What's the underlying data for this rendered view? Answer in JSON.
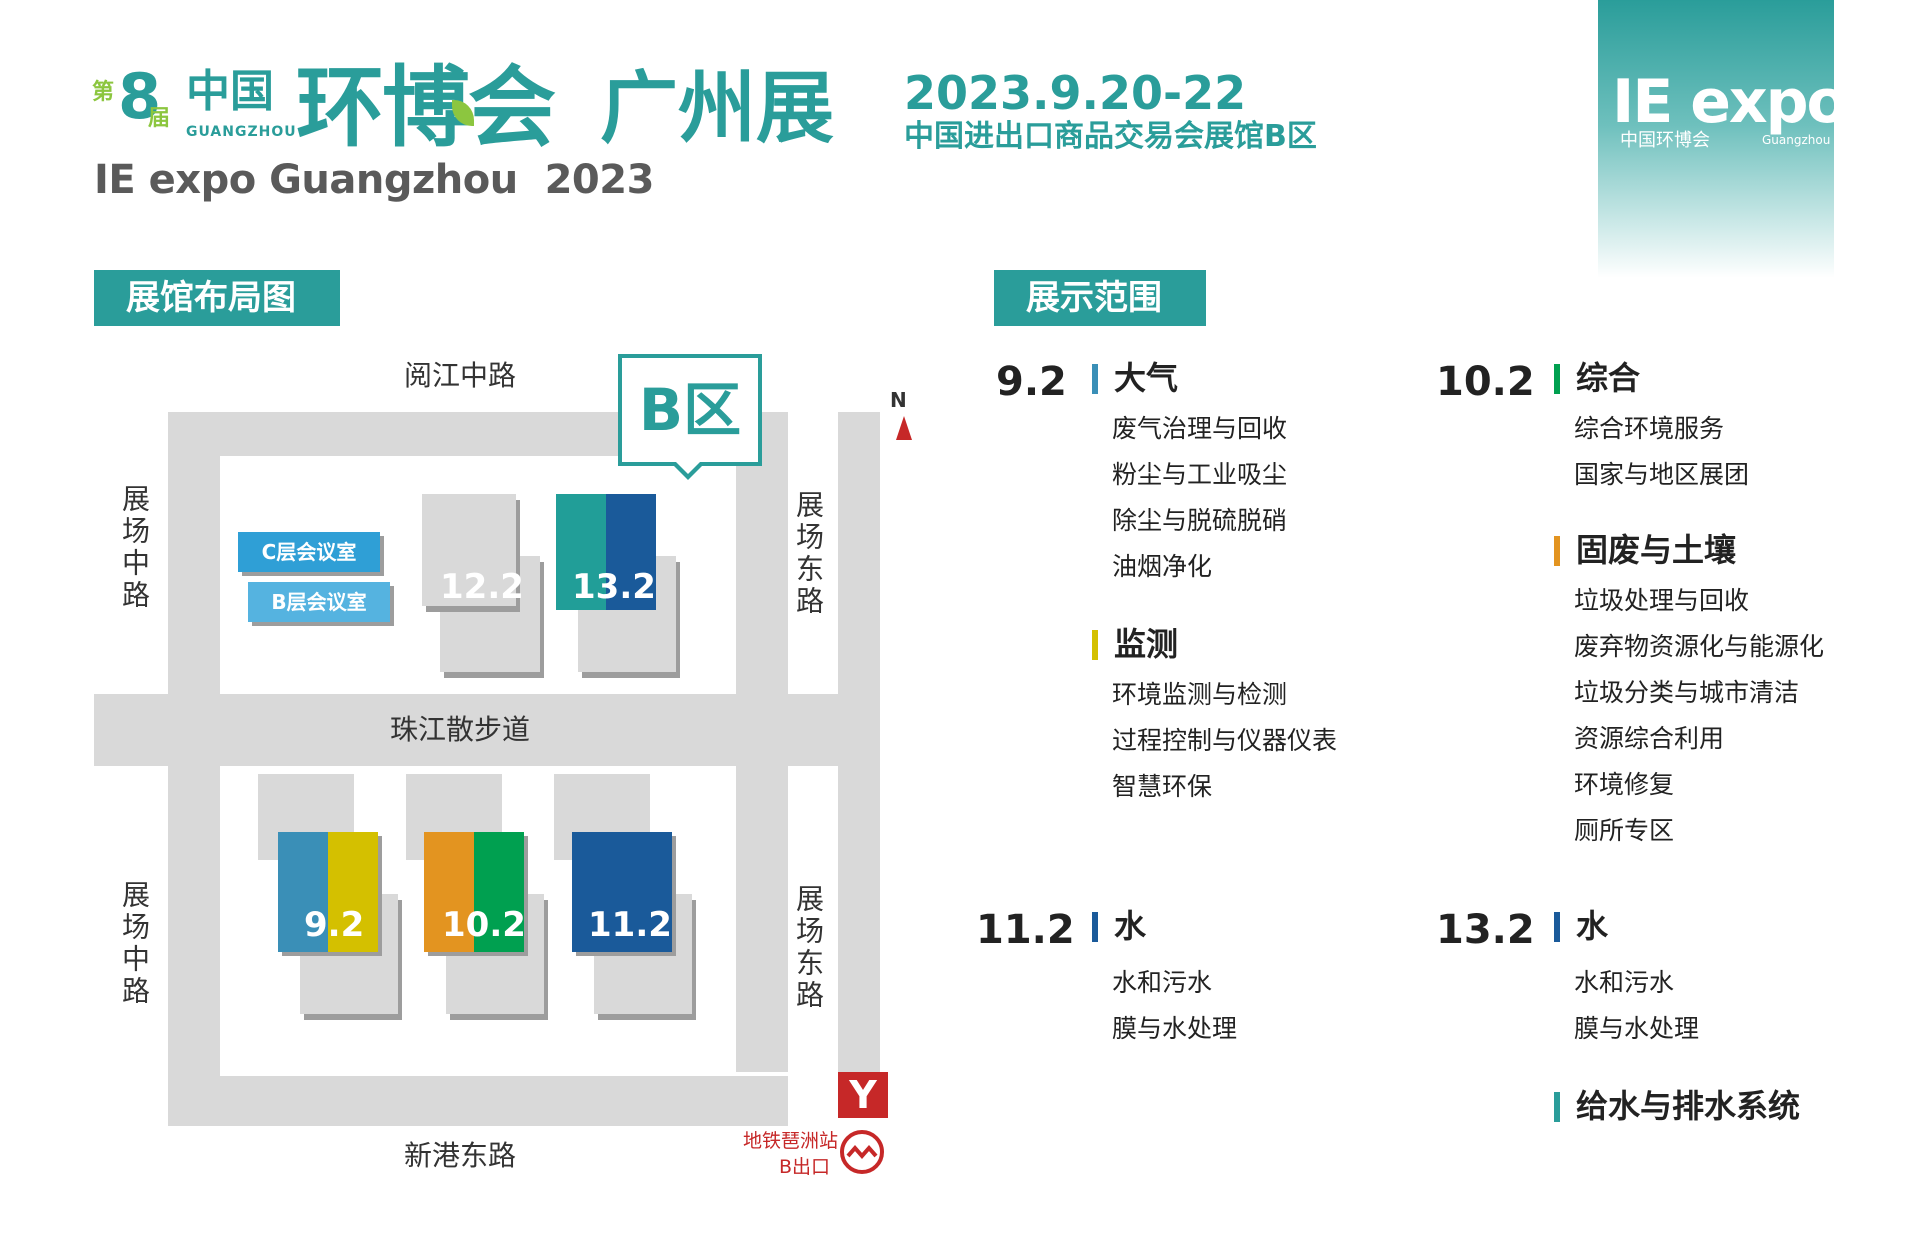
{
  "header": {
    "edition_a": "第",
    "edition_num": "8",
    "edition_b": "届",
    "cn_zh": "中国",
    "cn_gz": "GUANGZHOU",
    "main_title": "环博会",
    "city_title": "广州展",
    "en_title": "IE expo Guangzhou  2023",
    "date": "2023.9.20-22",
    "venue": "中国进出口商品交易会展馆B区",
    "logo_text": "IE expo",
    "logo_sub": "中国环博会",
    "logo_gz": "Guangzhou 广州",
    "brand_color": "#2a9d9a"
  },
  "layout_section": {
    "tag": "展馆布局图",
    "zone": "B区",
    "north": "N",
    "roads": {
      "top": "阅江中路",
      "middle": "珠江散步道",
      "bottom": "新港东路",
      "left_upper": "展场中路",
      "left_lower": "展场中路",
      "right_upper": "展场东路",
      "right_lower": "展场东路"
    },
    "meeting_rooms": [
      "C层会议室",
      "B层会议室"
    ],
    "halls": {
      "h12": "12.2",
      "h13": "13.2",
      "h9": "9.2",
      "h10": "10.2",
      "h11": "11.2"
    },
    "metro": {
      "symbol": "Y",
      "station": "地铁琶洲站",
      "exit": "B出口"
    }
  },
  "scope_section": {
    "tag": "展示范围",
    "hall_92": {
      "id": "9.2",
      "cat1": "大气",
      "cat1_items": [
        "废气治理与回收",
        "粉尘与工业吸尘",
        "除尘与脱硫脱硝",
        "油烟净化"
      ],
      "cat2": "监测",
      "cat2_items": [
        "环境监测与检测",
        "过程控制与仪器仪表",
        "智慧环保"
      ]
    },
    "hall_102": {
      "id": "10.2",
      "cat1": "综合",
      "cat1_items": [
        "综合环境服务",
        "国家与地区展团"
      ],
      "cat2": "固废与土壤",
      "cat2_items": [
        "垃圾处理与回收",
        "废弃物资源化与能源化",
        "垃圾分类与城市清洁",
        "资源综合利用",
        "环境修复",
        "厕所专区"
      ]
    },
    "hall_112": {
      "id": "11.2",
      "cat1": "水",
      "cat1_items": [
        "水和污水",
        "膜与水处理"
      ]
    },
    "hall_132": {
      "id": "13.2",
      "cat1": "水",
      "cat1_items": [
        "水和污水",
        "膜与水处理"
      ],
      "cat2": "给水与排水系统"
    },
    "colors": {
      "air": "#3a8fb7",
      "monitor": "#d4c000",
      "general": "#00a050",
      "solid": "#e39420",
      "water": "#1a5a9a",
      "supply": "#2a9d9a"
    }
  }
}
